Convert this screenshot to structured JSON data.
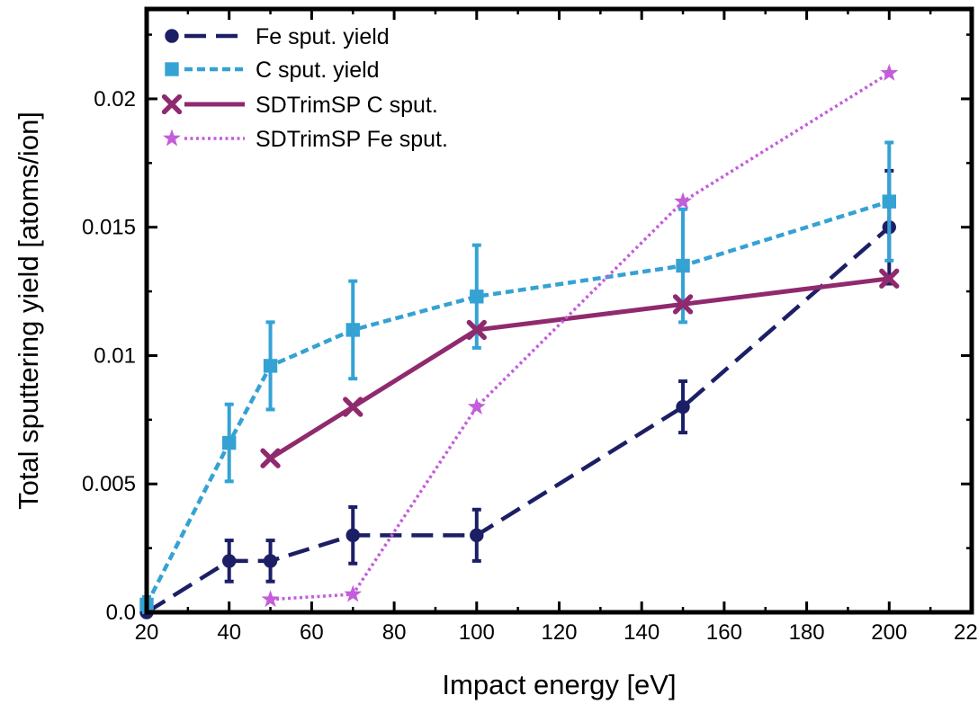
{
  "chart_data": {
    "type": "line",
    "xlabel": "Impact energy [eV]",
    "ylabel": "Total sputtering yield [atoms/ion]",
    "xlim": [
      20,
      220
    ],
    "ylim": [
      0,
      0.0235
    ],
    "x_ticks": [
      20,
      40,
      60,
      80,
      100,
      120,
      140,
      160,
      180,
      200,
      220
    ],
    "x_tick_labels": [
      "20",
      "40",
      "60",
      "80",
      "100",
      "120",
      "140",
      "160",
      "180",
      "200",
      "220"
    ],
    "y_ticks": [
      0,
      0.005,
      0.01,
      0.015,
      0.02
    ],
    "y_tick_labels": [
      "0.0",
      "0.005",
      "0.01",
      "0.015",
      "0.02"
    ],
    "grid": false,
    "legend_position": "top-left",
    "series": [
      {
        "name": "Fe sput. yield",
        "color": "#1c1f66",
        "line_style": "long-dash",
        "marker": "circle",
        "x": [
          20,
          40,
          50,
          70,
          100,
          150,
          200
        ],
        "y": [
          0.0,
          0.002,
          0.002,
          0.003,
          0.003,
          0.008,
          0.015
        ],
        "err": [
          0.0,
          0.0008,
          0.0008,
          0.0011,
          0.001,
          0.001,
          0.0022
        ]
      },
      {
        "name": "C sput. yield",
        "color": "#35a2d4",
        "line_style": "short-dash",
        "marker": "square",
        "x": [
          20,
          40,
          50,
          70,
          100,
          150,
          200
        ],
        "y": [
          0.0003,
          0.0066,
          0.0096,
          0.011,
          0.0123,
          0.0135,
          0.016
        ],
        "err": [
          0.0003,
          0.0015,
          0.0017,
          0.0019,
          0.002,
          0.0022,
          0.0023
        ]
      },
      {
        "name": "SDTrimSP C sput.",
        "color": "#902a6e",
        "line_style": "solid",
        "marker": "x",
        "x": [
          50,
          70,
          100,
          150,
          200
        ],
        "y": [
          0.006,
          0.008,
          0.011,
          0.012,
          0.013
        ]
      },
      {
        "name": "SDTrimSP Fe sput.",
        "color": "#c45cdb",
        "line_style": "dotted",
        "marker": "star",
        "x": [
          50,
          70,
          100,
          150,
          200
        ],
        "y": [
          0.0005,
          0.0007,
          0.008,
          0.016,
          0.021
        ]
      }
    ]
  }
}
